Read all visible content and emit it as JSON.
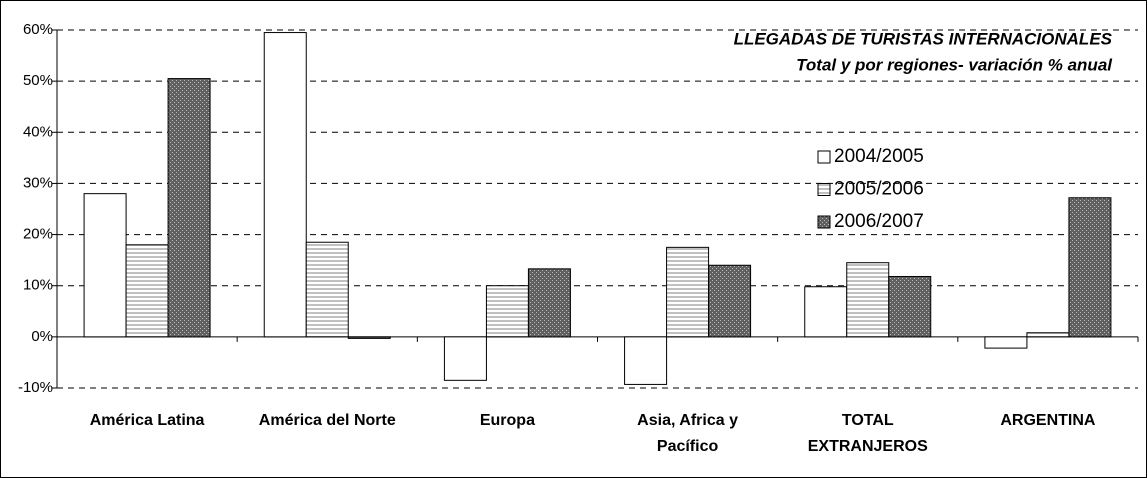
{
  "chart_data": {
    "type": "bar",
    "title": "LLEGADAS DE TURISTAS INTERNACIONALES",
    "subtitle": "Total  y por regiones- variación % anual",
    "categories": [
      "América Latina",
      "América del Norte",
      "Europa",
      "Asia, Africa y Pacífico",
      "TOTAL EXTRANJEROS",
      "ARGENTINA"
    ],
    "series": [
      {
        "name": "2004/2005",
        "color": "#ffffff",
        "values": [
          28,
          59.5,
          -8.5,
          -9.3,
          9.8,
          -2.2
        ]
      },
      {
        "name": "2005/2006",
        "color": "#c0c0c0",
        "values": [
          18,
          18.5,
          10,
          17.5,
          14.5,
          0.8
        ]
      },
      {
        "name": "2006/2007",
        "color": "#606060",
        "values": [
          50.5,
          -0.3,
          13.3,
          14,
          11.8,
          27.2
        ]
      }
    ],
    "ylim": [
      -10,
      60
    ],
    "yticks": [
      {
        "value": -10,
        "label": "-10%"
      },
      {
        "value": 0,
        "label": "0%"
      },
      {
        "value": 10,
        "label": "10%"
      },
      {
        "value": 20,
        "label": "20%"
      },
      {
        "value": 30,
        "label": "30%"
      },
      {
        "value": 40,
        "label": "40%"
      },
      {
        "value": 50,
        "label": "50%"
      },
      {
        "value": 60,
        "label": "60%"
      }
    ],
    "grid": true
  }
}
